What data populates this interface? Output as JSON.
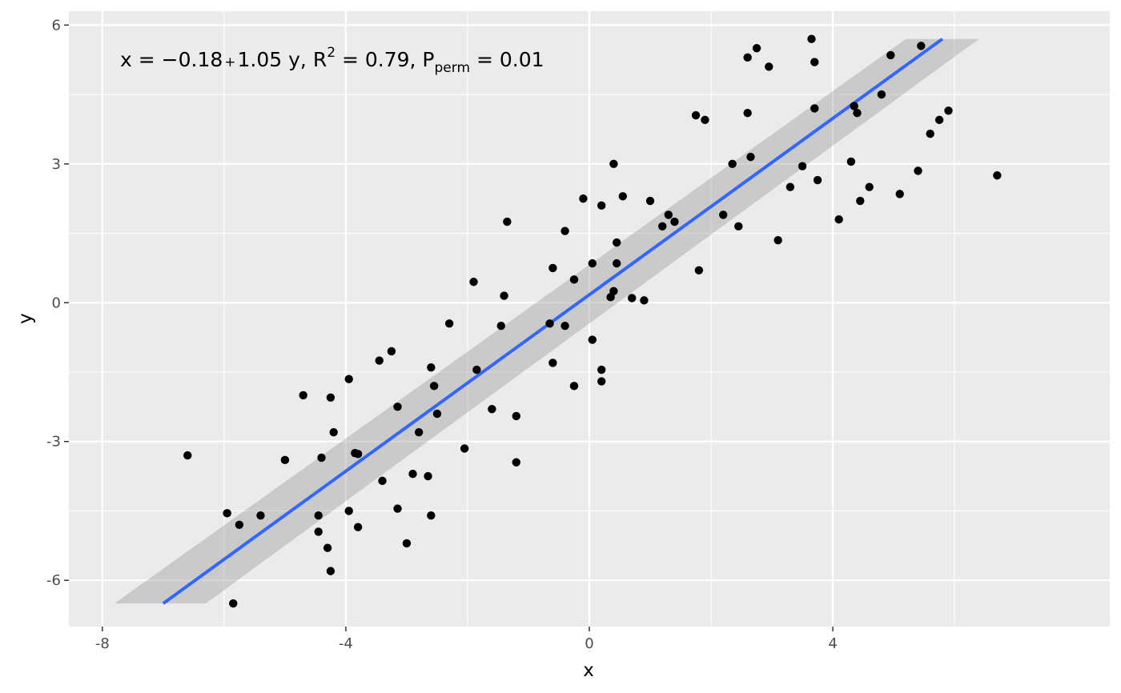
{
  "chart_data": {
    "type": "scatter",
    "title": "",
    "xlabel": "x",
    "ylabel": "y",
    "xlim": [
      -8.55,
      8.55
    ],
    "ylim": [
      -7.0,
      6.3
    ],
    "x_ticks": [
      -8,
      -4,
      0,
      4
    ],
    "x_tick_labels": [
      "-8",
      "-4",
      "0",
      "4"
    ],
    "y_ticks": [
      -6,
      -3,
      0,
      3,
      6
    ],
    "y_tick_labels": [
      "-6",
      "-3",
      "0",
      "3",
      "6"
    ],
    "grid": true,
    "annotation": {
      "prefix": "x = ",
      "minus": "−",
      "intercept": "0.18",
      "plus": "+",
      "slope_term": "1.05 y, R",
      "r2_exp": "2",
      "r2_value": " = 0.79, P",
      "p_sub": "perm",
      "p_value": " = 0.01"
    },
    "colors": {
      "panel": "#ebebeb",
      "grid": "#ffffff",
      "points": "#000000",
      "line": "#3366ff",
      "ribbon": "#999999"
    },
    "fit_line": {
      "x": [
        -7.0,
        5.8
      ],
      "y": [
        -6.5,
        5.7
      ]
    },
    "ribbon": {
      "y": [
        -6.5,
        5.7
      ],
      "x_lower": [
        -7.8,
        5.2
      ],
      "x_upper": [
        -6.3,
        6.4
      ]
    },
    "points": [
      [
        -6.6,
        -3.3
      ],
      [
        -5.95,
        -4.55
      ],
      [
        -5.85,
        -6.5
      ],
      [
        -5.75,
        -4.8
      ],
      [
        -5.4,
        -4.6
      ],
      [
        -5.0,
        -3.4
      ],
      [
        -4.7,
        -2.0
      ],
      [
        -4.45,
        -4.6
      ],
      [
        -4.45,
        -4.95
      ],
      [
        -4.4,
        -3.35
      ],
      [
        -4.3,
        -5.3
      ],
      [
        -4.25,
        -5.8
      ],
      [
        -4.25,
        -2.05
      ],
      [
        -4.2,
        -2.8
      ],
      [
        -3.95,
        -1.65
      ],
      [
        -3.95,
        -4.5
      ],
      [
        -3.85,
        -3.25
      ],
      [
        -3.8,
        -3.27
      ],
      [
        -3.8,
        -4.85
      ],
      [
        -3.45,
        -1.25
      ],
      [
        -3.4,
        -3.85
      ],
      [
        -3.25,
        -1.05
      ],
      [
        -3.15,
        -2.25
      ],
      [
        -3.15,
        -4.45
      ],
      [
        -3.0,
        -5.2
      ],
      [
        -2.9,
        -3.7
      ],
      [
        -2.8,
        -2.8
      ],
      [
        -2.65,
        -3.75
      ],
      [
        -2.6,
        -4.6
      ],
      [
        -2.6,
        -1.4
      ],
      [
        -2.55,
        -1.8
      ],
      [
        -2.5,
        -2.4
      ],
      [
        -2.3,
        -0.45
      ],
      [
        -2.05,
        -3.15
      ],
      [
        -1.9,
        0.45
      ],
      [
        -1.85,
        -1.45
      ],
      [
        -1.6,
        -2.3
      ],
      [
        -1.45,
        -0.5
      ],
      [
        -1.4,
        0.15
      ],
      [
        -1.35,
        1.75
      ],
      [
        -1.2,
        -3.45
      ],
      [
        -1.2,
        -2.45
      ],
      [
        -0.65,
        -0.45
      ],
      [
        -0.6,
        0.75
      ],
      [
        -0.6,
        -1.3
      ],
      [
        -0.4,
        1.55
      ],
      [
        -0.4,
        -0.5
      ],
      [
        -0.25,
        0.5
      ],
      [
        -0.25,
        -1.8
      ],
      [
        -0.1,
        2.25
      ],
      [
        0.05,
        0.85
      ],
      [
        0.05,
        -0.8
      ],
      [
        0.2,
        -1.45
      ],
      [
        0.2,
        -1.7
      ],
      [
        0.2,
        2.1
      ],
      [
        0.35,
        0.12
      ],
      [
        0.4,
        0.25
      ],
      [
        0.4,
        3.0
      ],
      [
        0.45,
        1.3
      ],
      [
        0.45,
        0.85
      ],
      [
        0.55,
        2.3
      ],
      [
        0.7,
        0.1
      ],
      [
        0.9,
        0.05
      ],
      [
        1.0,
        2.2
      ],
      [
        1.2,
        1.65
      ],
      [
        1.3,
        1.9
      ],
      [
        1.4,
        1.75
      ],
      [
        1.75,
        4.05
      ],
      [
        1.8,
        0.7
      ],
      [
        1.9,
        3.95
      ],
      [
        2.2,
        1.9
      ],
      [
        2.35,
        3.0
      ],
      [
        2.45,
        1.65
      ],
      [
        2.6,
        5.3
      ],
      [
        2.6,
        4.1
      ],
      [
        2.65,
        3.15
      ],
      [
        2.75,
        5.5
      ],
      [
        2.95,
        5.1
      ],
      [
        3.1,
        1.35
      ],
      [
        3.3,
        2.5
      ],
      [
        3.5,
        2.95
      ],
      [
        3.65,
        5.7
      ],
      [
        3.7,
        5.2
      ],
      [
        3.7,
        4.2
      ],
      [
        3.75,
        2.65
      ],
      [
        4.1,
        1.8
      ],
      [
        4.3,
        3.05
      ],
      [
        4.35,
        4.25
      ],
      [
        4.4,
        4.1
      ],
      [
        4.45,
        2.2
      ],
      [
        4.6,
        2.5
      ],
      [
        4.8,
        4.5
      ],
      [
        4.95,
        5.35
      ],
      [
        5.1,
        2.35
      ],
      [
        5.4,
        2.85
      ],
      [
        5.45,
        5.55
      ],
      [
        5.6,
        3.65
      ],
      [
        5.75,
        3.95
      ],
      [
        5.9,
        4.15
      ],
      [
        6.7,
        2.75
      ]
    ]
  }
}
